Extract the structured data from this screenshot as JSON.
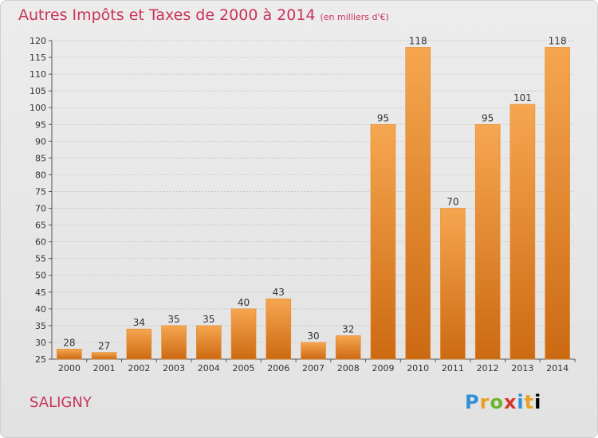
{
  "header": {
    "title": "Autres Impôts et Taxes de 2000 à 2014",
    "subtitle": "(en milliers d'€)"
  },
  "footer": {
    "city": "SALIGNY",
    "logo_letters": [
      "P",
      "r",
      "o",
      "x",
      "i",
      "t",
      "i"
    ]
  },
  "colors": {
    "title": "#c9345a",
    "bar_top": "#f6a650",
    "bar_bottom": "#cc6a12",
    "grid": "#bdbdbd"
  },
  "chart_data": {
    "type": "bar",
    "categories": [
      "2000",
      "2001",
      "2002",
      "2003",
      "2004",
      "2005",
      "2006",
      "2007",
      "2008",
      "2009",
      "2010",
      "2011",
      "2012",
      "2013",
      "2014"
    ],
    "values": [
      28,
      27,
      34,
      35,
      35,
      40,
      43,
      30,
      32,
      95,
      118,
      70,
      95,
      101,
      118
    ],
    "ylim": [
      25,
      120
    ],
    "yticks": [
      25,
      30,
      35,
      40,
      45,
      50,
      55,
      60,
      65,
      70,
      75,
      80,
      85,
      90,
      95,
      100,
      105,
      110,
      115,
      120
    ],
    "grid": true,
    "data_labels": true
  }
}
